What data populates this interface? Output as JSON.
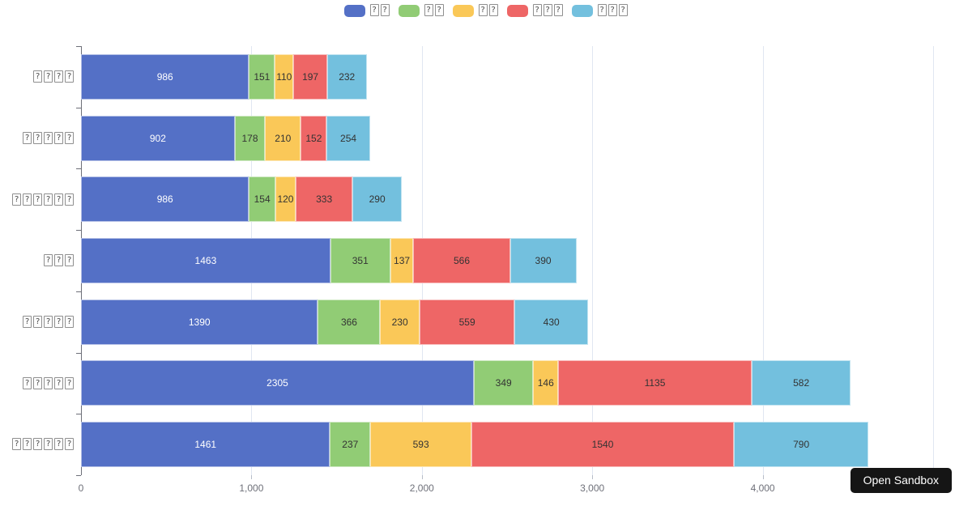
{
  "colors": {
    "background": "#ffffff",
    "axis_line": "#6E7079",
    "gridline": "#E0E6F1",
    "x_tick_mark": "#B7BDC8",
    "x_tick_label": "#6E7079"
  },
  "chart_data": {
    "type": "bar",
    "orientation": "horizontal",
    "stacked": true,
    "grid": true,
    "legend_position": "top-center",
    "categories_tofu": [
      "????",
      "?????",
      "??????",
      "???",
      "?????",
      "?????",
      "??????"
    ],
    "series": [
      {
        "name_tofu": "??",
        "color": "#5470C6",
        "label_color": "#ffffff",
        "values": [
          986,
          902,
          986,
          1463,
          1390,
          2305,
          1461
        ]
      },
      {
        "name_tofu": "??",
        "color": "#91CC75",
        "label_color": "#333333",
        "values": [
          151,
          178,
          154,
          351,
          366,
          349,
          237
        ]
      },
      {
        "name_tofu": "??",
        "color": "#FAC858",
        "label_color": "#333333",
        "values": [
          110,
          210,
          120,
          137,
          230,
          146,
          593
        ]
      },
      {
        "name_tofu": "???",
        "color": "#EE6666",
        "label_color": "#333333",
        "values": [
          197,
          152,
          333,
          566,
          559,
          1135,
          1540
        ]
      },
      {
        "name_tofu": "???",
        "color": "#73C0DE",
        "label_color": "#333333",
        "values": [
          232,
          254,
          290,
          390,
          430,
          582,
          790
        ]
      }
    ],
    "x_axis": {
      "max": 5000,
      "ticks": [
        {
          "label": "0",
          "value": 0
        },
        {
          "label": "1,000",
          "value": 1000
        },
        {
          "label": "2,000",
          "value": 2000
        },
        {
          "label": "3,000",
          "value": 3000
        },
        {
          "label": "4,000",
          "value": 4000
        }
      ],
      "tick_marks": [
        1000,
        2000,
        3000,
        4000
      ],
      "gridlines": [
        1000,
        2000,
        3000,
        4000,
        5000
      ]
    }
  },
  "sandbox_button": {
    "label": "Open Sandbox"
  }
}
